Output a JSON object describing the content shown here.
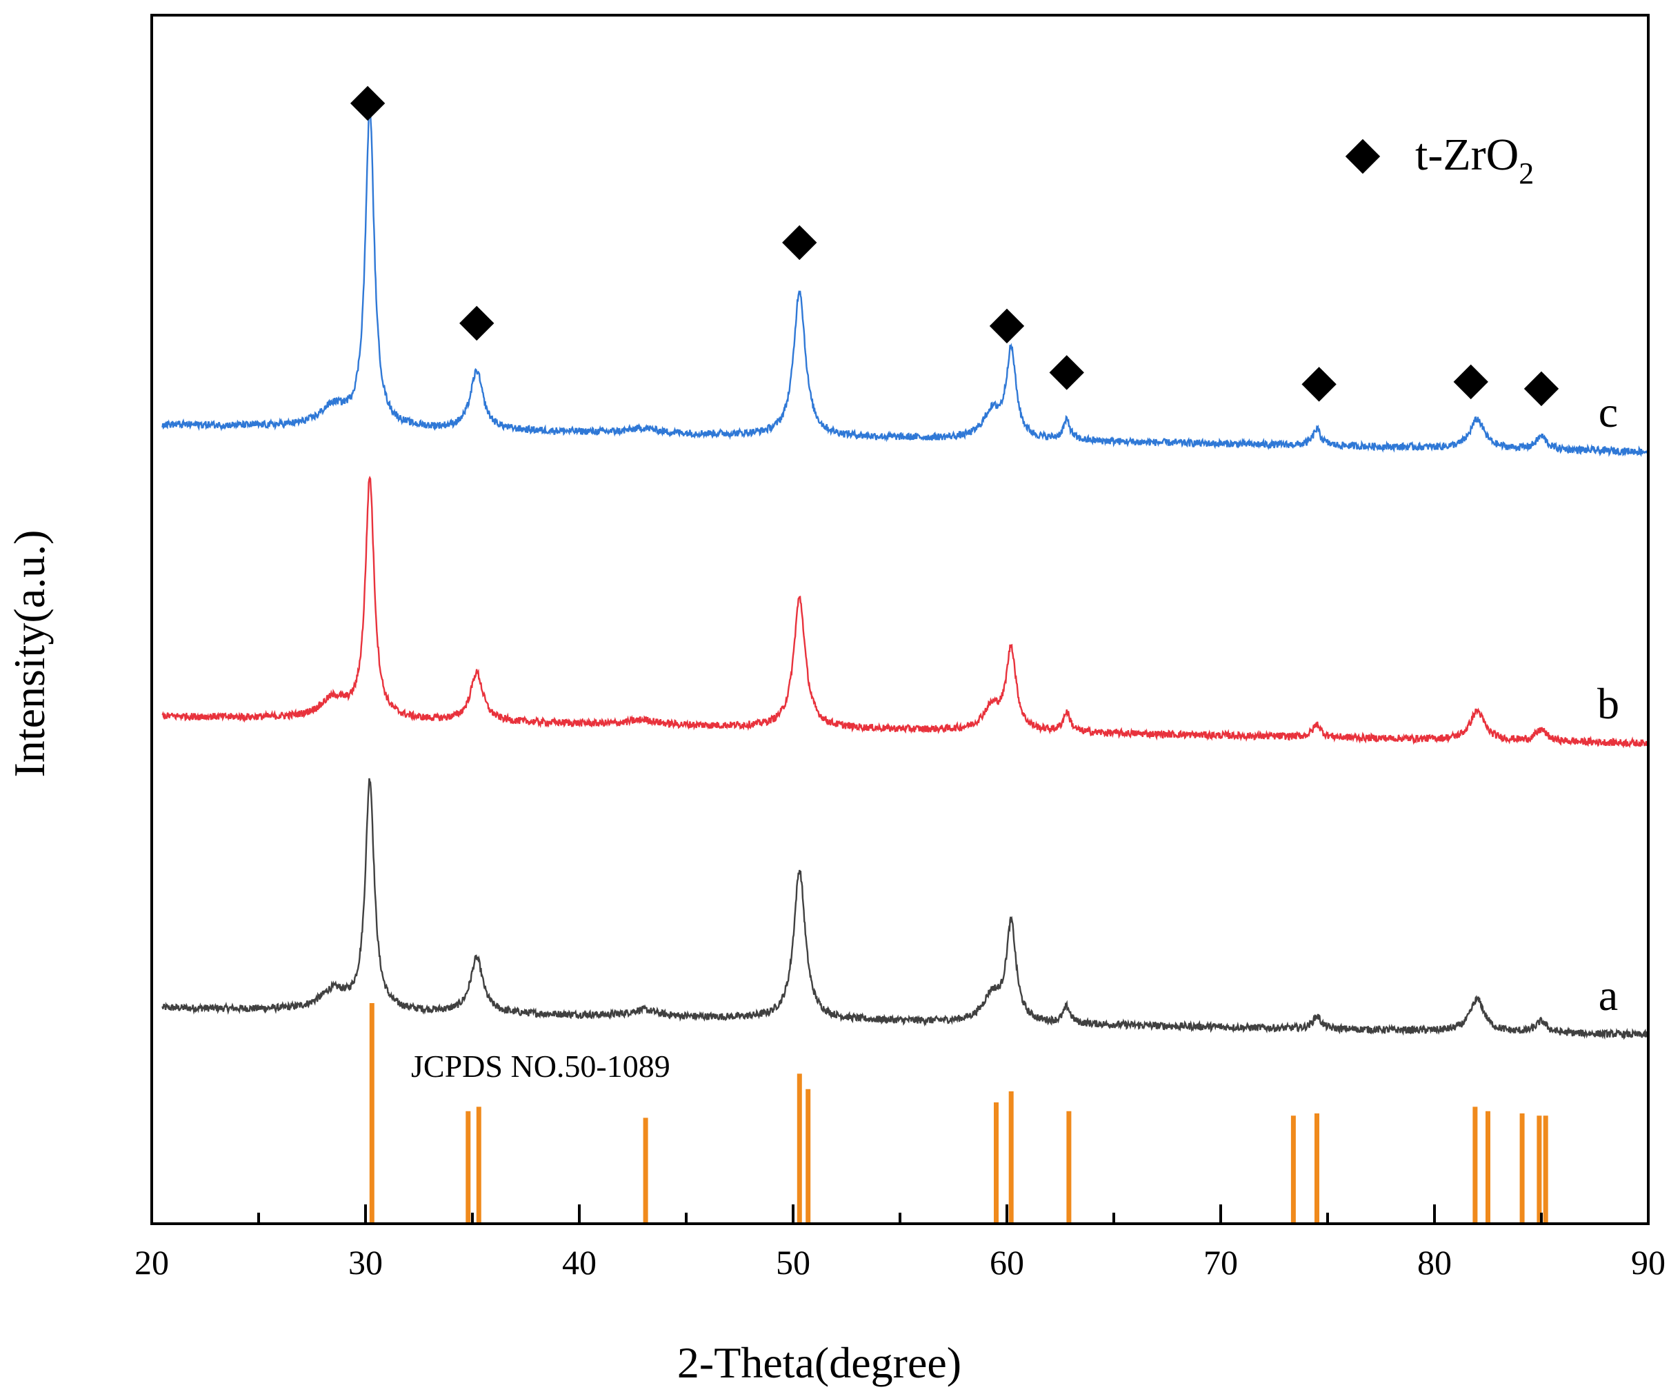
{
  "chart_data": {
    "type": "line",
    "title": "",
    "xlabel": "2-Theta(degree)",
    "ylabel": "Intensity(a.u.)",
    "xlim": [
      20,
      90
    ],
    "xticks": [
      20,
      30,
      40,
      50,
      60,
      70,
      80,
      90
    ],
    "xtick_labels": [
      "20",
      "30",
      "40",
      "50",
      "60",
      "70",
      "80",
      "90"
    ],
    "grid": false,
    "y_axis_ticks": false,
    "series": [
      {
        "name": "a",
        "color": "#404040",
        "baseline_offset": 0.0,
        "slope": -0.0012,
        "peaks": [
          {
            "x": 28.5,
            "height": 0.06,
            "width": 1.5
          },
          {
            "x": 30.2,
            "height": 0.71,
            "width": 0.5
          },
          {
            "x": 35.2,
            "height": 0.17,
            "width": 0.7
          },
          {
            "x": 43.0,
            "height": 0.02,
            "width": 1.5
          },
          {
            "x": 50.3,
            "height": 0.46,
            "width": 0.65
          },
          {
            "x": 59.3,
            "height": 0.08,
            "width": 1.0
          },
          {
            "x": 60.2,
            "height": 0.3,
            "width": 0.55
          },
          {
            "x": 62.8,
            "height": 0.05,
            "width": 0.4
          },
          {
            "x": 74.5,
            "height": 0.04,
            "width": 0.45
          },
          {
            "x": 82.0,
            "height": 0.1,
            "width": 0.8
          },
          {
            "x": 85.0,
            "height": 0.035,
            "width": 0.6
          }
        ]
      },
      {
        "name": "b",
        "color": "#e8323c",
        "baseline_offset": 0.9,
        "slope": -0.0012,
        "peaks": [
          {
            "x": 28.5,
            "height": 0.06,
            "width": 1.5
          },
          {
            "x": 30.2,
            "height": 0.74,
            "width": 0.5
          },
          {
            "x": 35.2,
            "height": 0.15,
            "width": 0.7
          },
          {
            "x": 43.0,
            "height": 0.015,
            "width": 1.5
          },
          {
            "x": 50.3,
            "height": 0.4,
            "width": 0.65
          },
          {
            "x": 59.3,
            "height": 0.07,
            "width": 1.0
          },
          {
            "x": 60.2,
            "height": 0.25,
            "width": 0.55
          },
          {
            "x": 62.8,
            "height": 0.06,
            "width": 0.4
          },
          {
            "x": 74.5,
            "height": 0.04,
            "width": 0.45
          },
          {
            "x": 82.0,
            "height": 0.09,
            "width": 0.8
          },
          {
            "x": 85.0,
            "height": 0.035,
            "width": 0.6
          }
        ]
      },
      {
        "name": "c",
        "color": "#2f78d6",
        "baseline_offset": 1.8,
        "slope": -0.0012,
        "peaks": [
          {
            "x": 28.5,
            "height": 0.06,
            "width": 1.5
          },
          {
            "x": 30.2,
            "height": 0.98,
            "width": 0.5
          },
          {
            "x": 35.2,
            "height": 0.18,
            "width": 0.7
          },
          {
            "x": 43.0,
            "height": 0.015,
            "width": 1.5
          },
          {
            "x": 50.3,
            "height": 0.45,
            "width": 0.65
          },
          {
            "x": 59.3,
            "height": 0.08,
            "width": 1.0
          },
          {
            "x": 60.2,
            "height": 0.27,
            "width": 0.55
          },
          {
            "x": 62.8,
            "height": 0.06,
            "width": 0.4
          },
          {
            "x": 74.5,
            "height": 0.05,
            "width": 0.45
          },
          {
            "x": 82.0,
            "height": 0.09,
            "width": 0.8
          },
          {
            "x": 85.0,
            "height": 0.04,
            "width": 0.6
          }
        ]
      }
    ],
    "peak_markers": {
      "series": "c",
      "symbol": "◆",
      "x": [
        30.1,
        35.2,
        50.3,
        60.0,
        62.8,
        74.6,
        81.7,
        85.0
      ],
      "legend_label": "t-ZrO",
      "legend_subscript": "2"
    },
    "reference": {
      "label": "JCPDS NO.50-1089",
      "color": "#f08a1c",
      "lines": [
        {
          "x": 30.3,
          "intensity": 100
        },
        {
          "x": 34.8,
          "intensity": 51
        },
        {
          "x": 35.3,
          "intensity": 53
        },
        {
          "x": 43.1,
          "intensity": 48
        },
        {
          "x": 50.3,
          "intensity": 68
        },
        {
          "x": 50.7,
          "intensity": 61
        },
        {
          "x": 59.5,
          "intensity": 55
        },
        {
          "x": 60.2,
          "intensity": 60
        },
        {
          "x": 62.9,
          "intensity": 51
        },
        {
          "x": 73.4,
          "intensity": 49
        },
        {
          "x": 74.5,
          "intensity": 50
        },
        {
          "x": 81.9,
          "intensity": 53
        },
        {
          "x": 82.5,
          "intensity": 51
        },
        {
          "x": 84.1,
          "intensity": 50
        },
        {
          "x": 84.9,
          "intensity": 49
        },
        {
          "x": 85.2,
          "intensity": 49
        }
      ]
    }
  }
}
